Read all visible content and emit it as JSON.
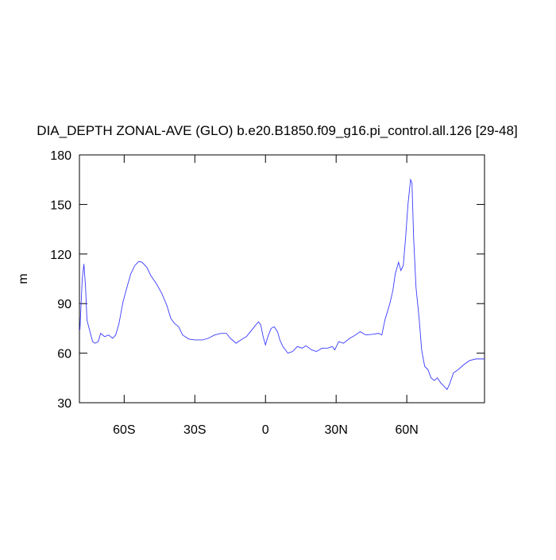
{
  "chart_data": {
    "type": "line",
    "title": "DIA_DEPTH ZONAL-AVE (GLO) b.e20.B1850.f09_g16.pi_control.all.126 [29-48]",
    "y_label": "m",
    "x": [
      -78.8,
      -77.8,
      -77.1,
      -76.4,
      -75.8,
      -74.7,
      -73.4,
      -72.4,
      -71,
      -70,
      -68.3,
      -66.6,
      -64.9,
      -63.6,
      -62.2,
      -60.5,
      -58.8,
      -57.2,
      -55.5,
      -53.8,
      -52.4,
      -50.4,
      -48.7,
      -46.3,
      -44,
      -41.9,
      -40.2,
      -38.6,
      -36.9,
      -35.2,
      -32.5,
      -30.1,
      -26.7,
      -24.3,
      -21.6,
      -18.9,
      -16.6,
      -14.9,
      -12.5,
      -10.5,
      -8.1,
      -6.4,
      -4.7,
      -3,
      -2,
      -1,
      0,
      1,
      2.4,
      3.7,
      5.1,
      6.1,
      7.4,
      9.5,
      11.5,
      13.5,
      15.6,
      17.2,
      19.6,
      21.6,
      24,
      26.4,
      28.4,
      29.4,
      31.1,
      33.1,
      35.8,
      38.2,
      40.2,
      42.6,
      46,
      48,
      49.4,
      50.7,
      52.8,
      54.1,
      55.1,
      56.5,
      57.5,
      58.5,
      59.5,
      60.5,
      61.6,
      62.2,
      62.9,
      63.9,
      65.3,
      66.3,
      67.6,
      69,
      70.3,
      71.7,
      73,
      74.4,
      75.8,
      77.1,
      78.1,
      79.8,
      81.8,
      84.2,
      86.6,
      89.3,
      93
    ],
    "series": [
      {
        "name": "DIA_DEPTH",
        "color": "#3a3aff",
        "values": [
          74,
          105,
          114,
          100,
          80,
          74,
          67,
          66,
          67,
          72,
          70,
          71,
          69,
          71,
          78,
          91,
          100,
          108,
          113,
          115.5,
          115,
          112,
          107,
          102,
          96,
          89,
          81,
          78,
          76,
          71,
          68.5,
          68,
          68,
          69,
          71,
          72,
          72,
          69,
          66,
          68,
          70,
          73,
          76,
          79,
          77,
          70,
          65,
          70,
          75,
          76,
          73,
          68,
          64,
          60,
          61,
          64,
          63,
          64.5,
          62,
          61,
          63,
          63,
          64,
          62,
          67,
          66,
          69,
          71,
          73,
          71,
          71.5,
          72,
          71,
          80,
          90,
          98,
          108,
          115,
          110,
          113,
          130,
          150,
          165,
          163,
          130,
          100,
          80,
          62,
          52,
          50,
          45,
          43.5,
          45,
          42,
          40,
          38,
          41,
          48,
          50,
          53,
          55.5,
          56.5,
          56.5
        ]
      }
    ],
    "xlim": [
      -79,
      93
    ],
    "xticks": [
      {
        "value": -60,
        "label": "60S"
      },
      {
        "value": -30,
        "label": "30S"
      },
      {
        "value": 0,
        "label": "0"
      },
      {
        "value": 30,
        "label": "30N"
      },
      {
        "value": 60,
        "label": "60N"
      }
    ],
    "ylim": [
      30,
      180
    ],
    "yticks": [
      30,
      60,
      90,
      120,
      150,
      180
    ]
  }
}
